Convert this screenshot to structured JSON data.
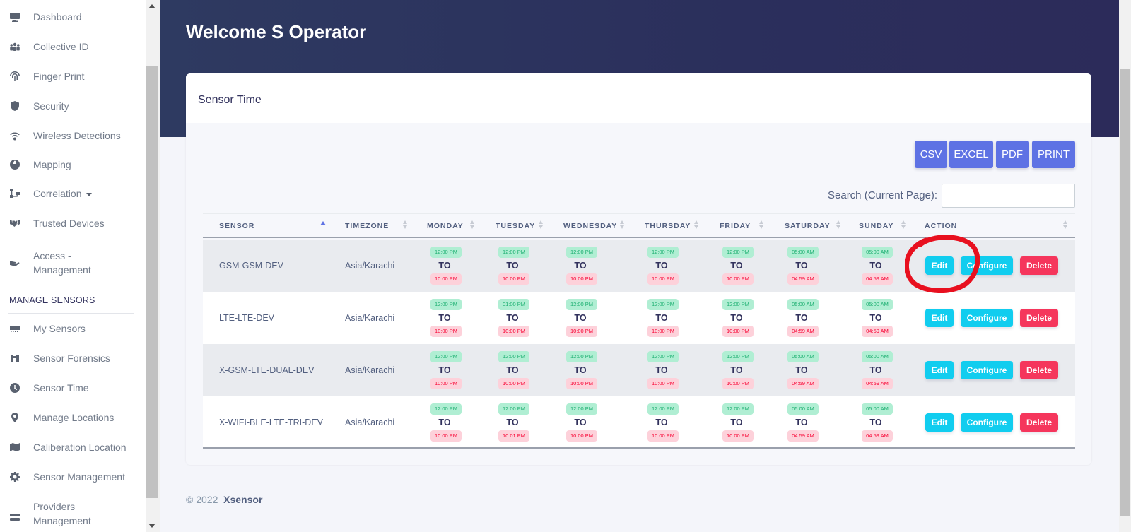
{
  "sidebar": {
    "items": [
      {
        "label": "Dashboard",
        "icon": "monitor-icon"
      },
      {
        "label": "Collective ID",
        "icon": "users-icon"
      },
      {
        "label": "Finger Print",
        "icon": "fingerprint-icon"
      },
      {
        "label": "Security",
        "icon": "shield-icon"
      },
      {
        "label": "Wireless Detections",
        "icon": "wifi-icon"
      },
      {
        "label": "Mapping",
        "icon": "globe-icon"
      },
      {
        "label": "Correlation",
        "icon": "sitemap-icon"
      },
      {
        "label": "Trusted Devices",
        "icon": "handshake-icon"
      },
      {
        "label": "Access -",
        "label2": "Management",
        "icon": "hand-icon"
      }
    ],
    "section_heading": "MANAGE SENSORS",
    "sensor_items": [
      {
        "label": "My Sensors",
        "icon": "server-icon"
      },
      {
        "label": "Sensor Forensics",
        "icon": "binoculars-icon"
      },
      {
        "label": "Sensor Time",
        "icon": "clock-icon"
      },
      {
        "label": "Manage Locations",
        "icon": "map-marker-icon"
      },
      {
        "label": "Caliberation Location",
        "icon": "map-icon"
      },
      {
        "label": "Sensor Management",
        "icon": "cog-icon"
      },
      {
        "label": "Providers",
        "label2": "Management",
        "icon": "providers-icon"
      }
    ]
  },
  "header": {
    "welcome": "Welcome S Operator"
  },
  "card": {
    "title": "Sensor Time"
  },
  "exports": [
    "CSV",
    "EXCEL",
    "PDF",
    "PRINT"
  ],
  "search": {
    "label": "Search (Current Page):",
    "value": ""
  },
  "table": {
    "columns": [
      "SENSOR",
      "TIMEZONE",
      "MONDAY",
      "TUESDAY",
      "WEDNESDAY",
      "THURSDAY",
      "FRIDAY",
      "SATURDAY",
      "SUNDAY",
      "ACTION"
    ],
    "to_label": "TO",
    "rows": [
      {
        "sensor": "GSM-GSM-DEV",
        "timezone": "Asia/Karachi",
        "days": [
          [
            "12:00 PM",
            "10:00 PM"
          ],
          [
            "12:00 PM",
            "10:00 PM"
          ],
          [
            "12:00 PM",
            "10:00 PM"
          ],
          [
            "12:00 PM",
            "10:00 PM"
          ],
          [
            "12:00 PM",
            "10:00 PM"
          ],
          [
            "05:00 AM",
            "04:59 AM"
          ],
          [
            "05:00 AM",
            "04:59 AM"
          ]
        ]
      },
      {
        "sensor": "LTE-LTE-DEV",
        "timezone": "Asia/Karachi",
        "days": [
          [
            "12:00 PM",
            "10:00 PM"
          ],
          [
            "01:00 PM",
            "10:00 PM"
          ],
          [
            "12:00 PM",
            "10:00 PM"
          ],
          [
            "12:00 PM",
            "10:00 PM"
          ],
          [
            "12:00 PM",
            "10:00 PM"
          ],
          [
            "05:00 AM",
            "04:59 AM"
          ],
          [
            "05:00 AM",
            "04:59 AM"
          ]
        ]
      },
      {
        "sensor": "X-GSM-LTE-DUAL-DEV",
        "timezone": "Asia/Karachi",
        "days": [
          [
            "12:00 PM",
            "10:00 PM"
          ],
          [
            "12:00 PM",
            "10:00 PM"
          ],
          [
            "12:00 PM",
            "10:00 PM"
          ],
          [
            "12:00 PM",
            "10:00 PM"
          ],
          [
            "12:00 PM",
            "10:00 PM"
          ],
          [
            "05:00 AM",
            "04:59 AM"
          ],
          [
            "05:00 AM",
            "04:59 AM"
          ]
        ]
      },
      {
        "sensor": "X-WIFI-BLE-LTE-TRI-DEV",
        "timezone": "Asia/Karachi",
        "days": [
          [
            "12:00 PM",
            "10:00 PM"
          ],
          [
            "12:00 PM",
            "10:01 PM"
          ],
          [
            "12:00 PM",
            "10:00 PM"
          ],
          [
            "12:00 PM",
            "10:00 PM"
          ],
          [
            "12:00 PM",
            "10:00 PM"
          ],
          [
            "05:00 AM",
            "04:59 AM"
          ],
          [
            "05:00 AM",
            "04:59 AM"
          ]
        ]
      }
    ],
    "actions": {
      "edit": "Edit",
      "configure": "Configure",
      "delete": "Delete"
    }
  },
  "footer": {
    "copyright": "© 2022",
    "brand": "Xsensor"
  },
  "colors": {
    "primary": "#5e72e4",
    "info": "#11cdef",
    "danger": "#f5365c",
    "annotation": "#e8101f"
  }
}
